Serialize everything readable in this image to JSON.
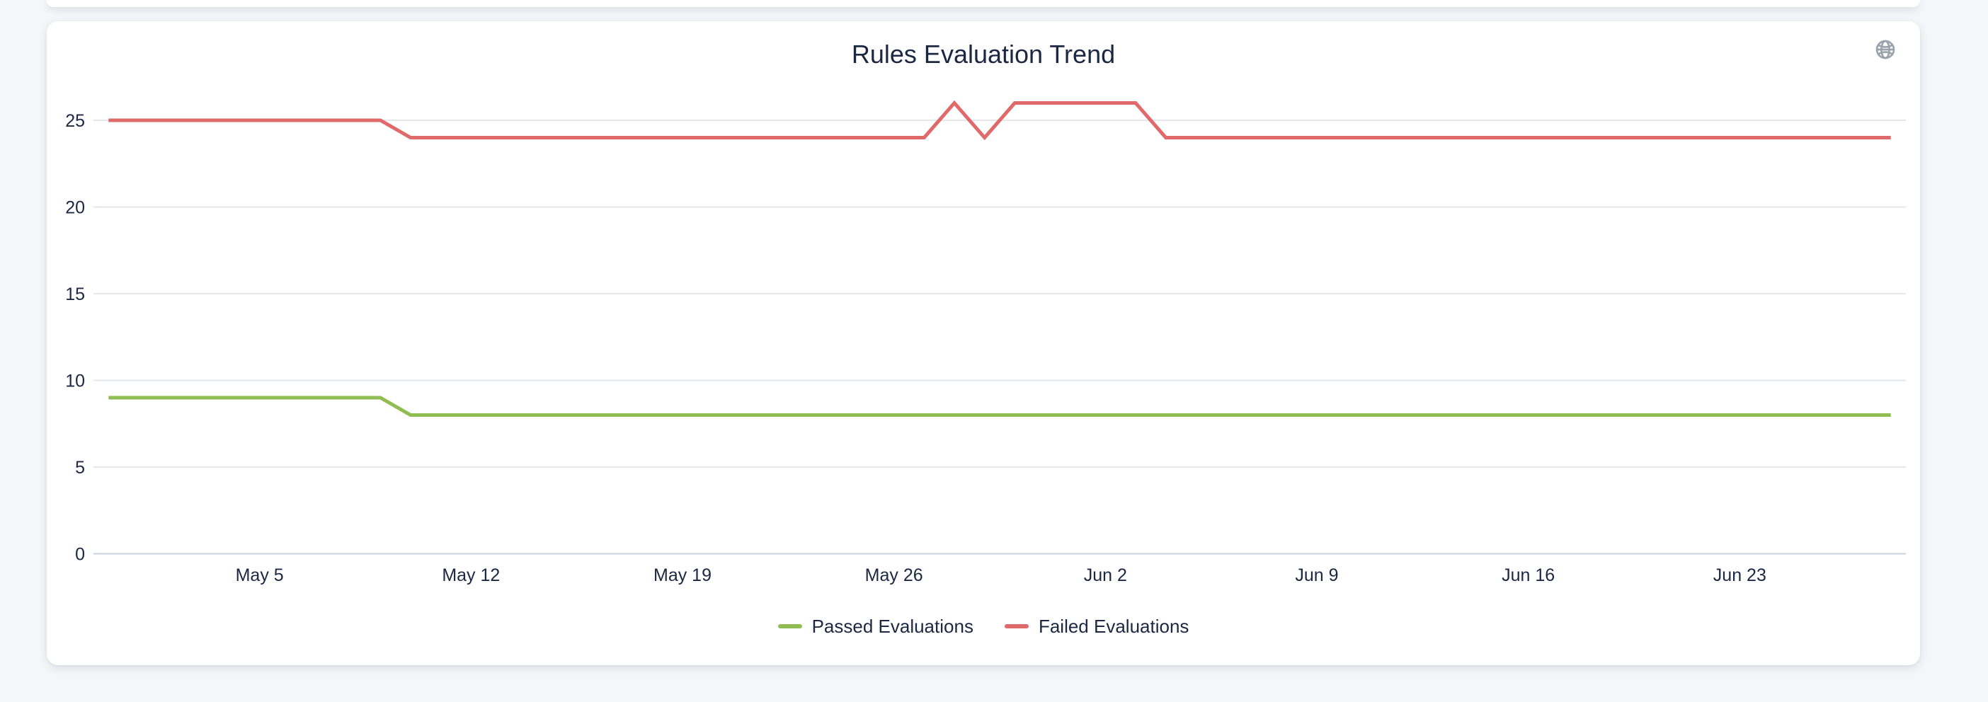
{
  "card": {
    "title": "Rules Evaluation Trend"
  },
  "icons": {
    "globe": "globe-icon"
  },
  "colors": {
    "passed": "#8fbd52",
    "failed": "#e06a6a",
    "grid": "#e6e7ea",
    "axis_zero": "#c9d1de",
    "text": "#1c2742",
    "icon_gray": "#9aa2ac",
    "card_bg": "#ffffff",
    "page_bg": "#f4f6f9"
  },
  "chart_data": {
    "type": "line",
    "title": "Rules Evaluation Trend",
    "xlabel": "",
    "ylabel": "",
    "ylim": [
      0,
      26
    ],
    "yticks": [
      0,
      5,
      10,
      15,
      20,
      25
    ],
    "grid": true,
    "legend_position": "bottom",
    "x": [
      "Apr 30",
      "May 1",
      "May 2",
      "May 3",
      "May 4",
      "May 5",
      "May 6",
      "May 7",
      "May 8",
      "May 9",
      "May 10",
      "May 11",
      "May 12",
      "May 13",
      "May 14",
      "May 15",
      "May 16",
      "May 17",
      "May 18",
      "May 19",
      "May 20",
      "May 21",
      "May 22",
      "May 23",
      "May 24",
      "May 25",
      "May 26",
      "May 27",
      "May 28",
      "May 29",
      "May 30",
      "May 31",
      "Jun 1",
      "Jun 2",
      "Jun 3",
      "Jun 4",
      "Jun 5",
      "Jun 6",
      "Jun 7",
      "Jun 8",
      "Jun 9",
      "Jun 10",
      "Jun 11",
      "Jun 12",
      "Jun 13",
      "Jun 14",
      "Jun 15",
      "Jun 16",
      "Jun 17",
      "Jun 18",
      "Jun 19",
      "Jun 20",
      "Jun 21",
      "Jun 22",
      "Jun 23",
      "Jun 24",
      "Jun 25",
      "Jun 26",
      "Jun 27",
      "Jun 28"
    ],
    "x_tick_indices": [
      5,
      12,
      19,
      26,
      33,
      40,
      47,
      54
    ],
    "x_tick_labels": [
      "May 5",
      "May 12",
      "May 19",
      "May 26",
      "Jun 2",
      "Jun 9",
      "Jun 16",
      "Jun 23"
    ],
    "series": [
      {
        "name": "Passed Evaluations",
        "color": "#8fbd52",
        "values": [
          9,
          9,
          9,
          9,
          9,
          9,
          9,
          9,
          9,
          9,
          8,
          8,
          8,
          8,
          8,
          8,
          8,
          8,
          8,
          8,
          8,
          8,
          8,
          8,
          8,
          8,
          8,
          8,
          8,
          8,
          8,
          8,
          8,
          8,
          8,
          8,
          8,
          8,
          8,
          8,
          8,
          8,
          8,
          8,
          8,
          8,
          8,
          8,
          8,
          8,
          8,
          8,
          8,
          8,
          8,
          8,
          8,
          8,
          8,
          8
        ]
      },
      {
        "name": "Failed Evaluations",
        "color": "#e06a6a",
        "values": [
          25,
          25,
          25,
          25,
          25,
          25,
          25,
          25,
          25,
          25,
          24,
          24,
          24,
          24,
          24,
          24,
          24,
          24,
          24,
          24,
          24,
          24,
          24,
          24,
          24,
          24,
          24,
          24,
          26,
          24,
          26,
          26,
          26,
          26,
          26,
          24,
          24,
          24,
          24,
          24,
          24,
          24,
          24,
          24,
          24,
          24,
          24,
          24,
          24,
          24,
          24,
          24,
          24,
          24,
          24,
          24,
          24,
          24,
          24,
          24
        ]
      }
    ]
  }
}
